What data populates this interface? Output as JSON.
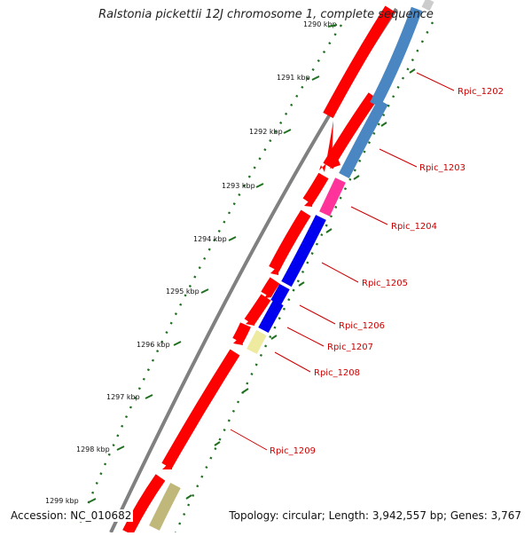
{
  "title": "Ralstonia pickettii 12J chromosome 1, complete sequence",
  "accession": "Accession: NC_010682",
  "summary": "Topology: circular; Length: 3,942,557 bp; Genes: 3,767",
  "ruler": {
    "partial_label": "1290 kbp",
    "ticks": [
      "1291 kbp",
      "1292 kbp",
      "1293 kbp",
      "1294 kbp",
      "1295 kbp",
      "1296 kbp",
      "1297 kbp",
      "1298 kbp",
      "1299 kbp"
    ]
  },
  "genes": [
    "Rpic_1202",
    "Rpic_1203",
    "Rpic_1204",
    "Rpic_1205",
    "Rpic_1206",
    "Rpic_1207",
    "Rpic_1208",
    "Rpic_1209"
  ],
  "colors": {
    "forward": "#ff0000",
    "reverse_blue": "#4a86c2",
    "reverse_pink": "#ff3399",
    "reverse_darkblue": "#0000ee",
    "reverse_yellow": "#eeeba0",
    "reverse_khaki": "#c0b87a",
    "backbone": "#808080",
    "ruler": "#207020",
    "label": "#cc0000"
  }
}
